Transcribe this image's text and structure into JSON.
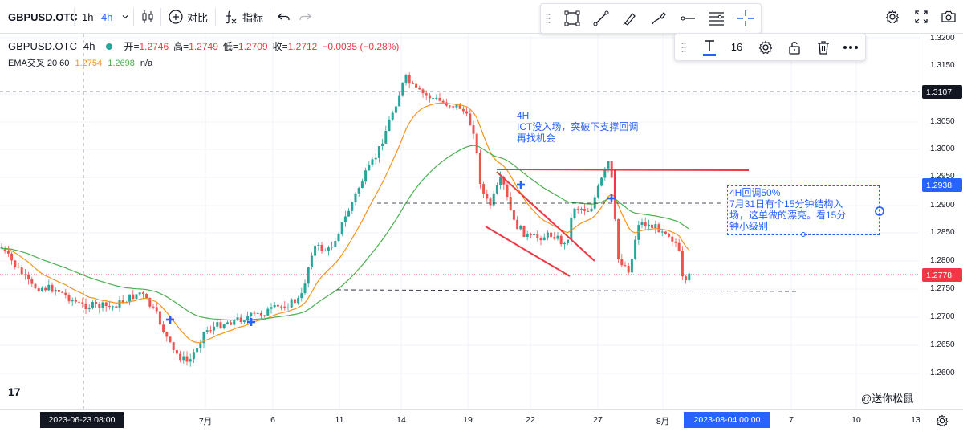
{
  "toolbar": {
    "symbol": "GBPUSD.OTC",
    "interval_1h": "1h",
    "interval_4h": "4h",
    "compare_label": "对比",
    "indicators_label": "指标"
  },
  "text_toolbar": {
    "font_size": "16"
  },
  "legend": {
    "symbol": "GBPUSD.OTC",
    "interval": "4h",
    "open_label": "开=",
    "open_value": "1.2746",
    "high_label": "高=",
    "high_value": "1.2749",
    "low_label": "低=",
    "low_value": "1.2709",
    "close_label": "收=",
    "close_value": "1.2712",
    "change": "−0.0035 (−0.28%)",
    "ema_label": "EMA交叉 20 60",
    "ema_fast": "1.2754",
    "ema_slow": "1.2698",
    "ema_na": "n/a"
  },
  "price_axis": {
    "ticks": [
      "1.3200",
      "1.3150",
      "1.3050",
      "1.3000",
      "1.2950",
      "1.2900",
      "1.2850",
      "1.2800",
      "1.2750",
      "1.2700",
      "1.2650",
      "1.2600"
    ],
    "crosshair_price": "1.3107",
    "level_price": "1.2938",
    "last_price": "1.2778"
  },
  "time_axis": {
    "ticks": [
      "7月",
      "6",
      "11",
      "14",
      "19",
      "22",
      "27",
      "8月",
      "7",
      "10",
      "13"
    ],
    "crosshair_label": "2023-06-23   08:00",
    "selected_label": "2023-08-04   00:00"
  },
  "annotations": {
    "note1_title": "4H",
    "note1_line1": "ICT没入场，突破下支撑回调",
    "note1_line2": "再找机会",
    "note2_line1": "4H回调50%",
    "note2_line2": "7月31日有个15分钟结构入",
    "note2_line3": "场，这单做的漂亮。看15分",
    "note2_line4": "钟小级别"
  },
  "logo_text": "17",
  "watermark": "@送你松鼠",
  "colors": {
    "up": "#26a69a",
    "down": "#ef5350",
    "ema_fast": "#f7931a",
    "ema_slow": "#4caf50",
    "accent": "#2962ff",
    "drawing_red": "#f23645"
  }
}
